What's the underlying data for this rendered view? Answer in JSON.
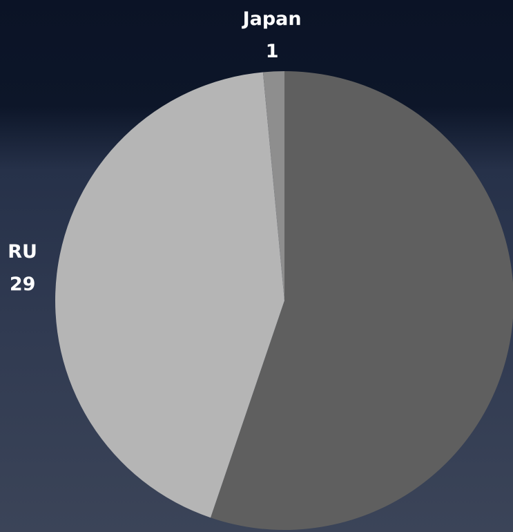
{
  "chart_data": {
    "type": "pie",
    "categories": [
      null,
      "RU",
      "Japan"
    ],
    "values": [
      37,
      29,
      1
    ],
    "colors": [
      "#5f5f5f",
      "#b5b5b5",
      "#8e8e8e"
    ]
  }
}
